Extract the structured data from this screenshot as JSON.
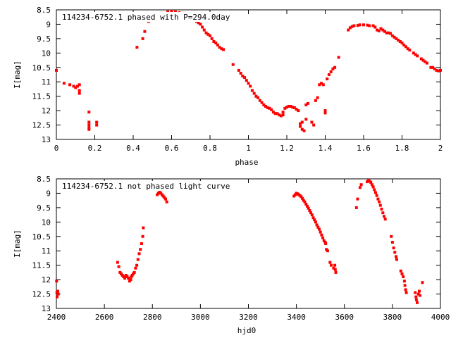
{
  "chart_data": [
    {
      "type": "scatter",
      "title": "114234-6752.1 phased with P=294.0day",
      "xlabel": "phase",
      "ylabel": "I[mag]",
      "xlim": [
        0,
        2
      ],
      "ylim": [
        8.5,
        13
      ],
      "y_inverted": true,
      "grid": false,
      "legend": "none",
      "marker_color": "#ff0000",
      "xticks": [
        "0",
        "0.2",
        "0.4",
        "0.6",
        "0.8",
        "1",
        "1.2",
        "1.4",
        "1.6",
        "1.8",
        "2"
      ],
      "yticks": [
        "8.5",
        "9",
        "9.5",
        "10",
        "10.5",
        "11",
        "11.5",
        "12",
        "12.5",
        "13"
      ],
      "series": [
        {
          "points": [
            [
              0.0,
              10.6
            ],
            [
              0.04,
              11.05
            ],
            [
              0.07,
              11.1
            ],
            [
              0.09,
              11.15
            ],
            [
              0.1,
              11.2
            ],
            [
              0.11,
              11.15
            ],
            [
              0.12,
              11.1
            ],
            [
              0.12,
              11.3
            ],
            [
              0.12,
              11.4
            ],
            [
              0.17,
              12.05
            ],
            [
              0.17,
              12.4
            ],
            [
              0.17,
              12.5
            ],
            [
              0.17,
              12.6
            ],
            [
              0.17,
              12.65
            ],
            [
              0.21,
              12.4
            ],
            [
              0.21,
              12.5
            ],
            [
              0.42,
              9.8
            ],
            [
              0.45,
              9.5
            ],
            [
              0.46,
              9.25
            ],
            [
              0.48,
              8.9
            ],
            [
              0.5,
              8.8
            ],
            [
              0.52,
              8.72
            ],
            [
              0.54,
              8.67
            ],
            [
              0.55,
              8.62
            ],
            [
              0.58,
              8.57
            ],
            [
              0.6,
              8.55
            ],
            [
              0.62,
              8.57
            ],
            [
              0.64,
              8.6
            ],
            [
              0.66,
              8.62
            ],
            [
              0.68,
              8.65
            ],
            [
              0.7,
              8.72
            ],
            [
              0.71,
              8.75
            ],
            [
              0.72,
              8.8
            ],
            [
              0.73,
              8.9
            ],
            [
              0.74,
              8.95
            ],
            [
              0.75,
              9.0
            ],
            [
              0.76,
              9.1
            ],
            [
              0.77,
              9.2
            ],
            [
              0.78,
              9.3
            ],
            [
              0.79,
              9.35
            ],
            [
              0.8,
              9.4
            ],
            [
              0.81,
              9.5
            ],
            [
              0.82,
              9.6
            ],
            [
              0.83,
              9.65
            ],
            [
              0.84,
              9.72
            ],
            [
              0.85,
              9.8
            ],
            [
              0.86,
              9.85
            ],
            [
              0.87,
              9.88
            ],
            [
              0.92,
              10.4
            ],
            [
              0.95,
              10.6
            ],
            [
              0.96,
              10.7
            ],
            [
              0.97,
              10.8
            ],
            [
              0.98,
              10.85
            ],
            [
              0.99,
              10.95
            ],
            [
              1.0,
              11.05
            ],
            [
              1.01,
              11.15
            ],
            [
              1.02,
              11.3
            ],
            [
              1.03,
              11.4
            ],
            [
              1.04,
              11.5
            ],
            [
              1.05,
              11.55
            ],
            [
              1.06,
              11.65
            ],
            [
              1.07,
              11.72
            ],
            [
              1.08,
              11.8
            ],
            [
              1.09,
              11.85
            ],
            [
              1.1,
              11.9
            ],
            [
              1.11,
              11.92
            ],
            [
              1.12,
              11.97
            ],
            [
              1.13,
              12.05
            ],
            [
              1.14,
              12.1
            ],
            [
              1.15,
              12.1
            ],
            [
              1.16,
              12.15
            ],
            [
              1.17,
              12.18
            ],
            [
              1.18,
              12.15
            ],
            [
              1.18,
              12.05
            ],
            [
              1.19,
              11.92
            ],
            [
              1.2,
              11.88
            ],
            [
              1.21,
              11.85
            ],
            [
              1.22,
              11.85
            ],
            [
              1.23,
              11.88
            ],
            [
              1.24,
              11.9
            ],
            [
              1.25,
              11.95
            ],
            [
              1.26,
              12.0
            ],
            [
              1.27,
              12.45
            ],
            [
              1.27,
              12.55
            ],
            [
              1.28,
              12.65
            ],
            [
              1.29,
              12.7
            ],
            [
              1.28,
              12.4
            ],
            [
              1.3,
              12.3
            ],
            [
              1.3,
              11.8
            ],
            [
              1.31,
              11.75
            ],
            [
              1.33,
              12.4
            ],
            [
              1.34,
              12.5
            ],
            [
              1.35,
              11.65
            ],
            [
              1.36,
              11.55
            ],
            [
              1.37,
              11.1
            ],
            [
              1.38,
              11.05
            ],
            [
              1.39,
              11.1
            ],
            [
              1.4,
              12.0
            ],
            [
              1.4,
              12.08
            ],
            [
              1.41,
              10.9
            ],
            [
              1.42,
              10.75
            ],
            [
              1.43,
              10.65
            ],
            [
              1.44,
              10.55
            ],
            [
              1.45,
              10.5
            ],
            [
              1.47,
              10.15
            ],
            [
              1.52,
              9.2
            ],
            [
              1.53,
              9.12
            ],
            [
              1.54,
              9.08
            ],
            [
              1.55,
              9.05
            ],
            [
              1.57,
              9.04
            ],
            [
              1.58,
              9.02
            ],
            [
              1.6,
              9.02
            ],
            [
              1.62,
              9.03
            ],
            [
              1.63,
              9.05
            ],
            [
              1.65,
              9.05
            ],
            [
              1.66,
              9.1
            ],
            [
              1.67,
              9.2
            ],
            [
              1.68,
              9.23
            ],
            [
              1.69,
              9.15
            ],
            [
              1.7,
              9.2
            ],
            [
              1.71,
              9.25
            ],
            [
              1.72,
              9.3
            ],
            [
              1.73,
              9.3
            ],
            [
              1.74,
              9.32
            ],
            [
              1.75,
              9.4
            ],
            [
              1.76,
              9.45
            ],
            [
              1.77,
              9.5
            ],
            [
              1.78,
              9.55
            ],
            [
              1.79,
              9.6
            ],
            [
              1.8,
              9.65
            ],
            [
              1.81,
              9.72
            ],
            [
              1.82,
              9.78
            ],
            [
              1.83,
              9.85
            ],
            [
              1.84,
              9.9
            ],
            [
              1.86,
              10.0
            ],
            [
              1.87,
              10.05
            ],
            [
              1.88,
              10.1
            ],
            [
              1.9,
              10.2
            ],
            [
              1.91,
              10.25
            ],
            [
              1.92,
              10.3
            ],
            [
              1.93,
              10.35
            ],
            [
              1.95,
              10.5
            ],
            [
              1.96,
              10.5
            ],
            [
              1.97,
              10.55
            ],
            [
              1.98,
              10.6
            ],
            [
              1.99,
              10.62
            ],
            [
              2.0,
              10.6
            ]
          ]
        }
      ]
    },
    {
      "type": "scatter",
      "title": "114234-6752.1 not phased light curve",
      "xlabel": "hjd0",
      "ylabel": "I[mag]",
      "xlim": [
        2400,
        4000
      ],
      "ylim": [
        8.5,
        13
      ],
      "y_inverted": true,
      "grid": false,
      "legend": "none",
      "marker_color": "#ff0000",
      "xticks": [
        "2400",
        "2600",
        "2800",
        "3000",
        "3200",
        "3400",
        "3600",
        "3800",
        "4000"
      ],
      "yticks": [
        "8.5",
        "9",
        "9.5",
        "10",
        "10.5",
        "11",
        "11.5",
        "12",
        "12.5",
        "13"
      ],
      "series": [
        {
          "points": [
            [
              2401,
              12.05
            ],
            [
              2402,
              12.45
            ],
            [
              2403,
              12.6
            ],
            [
              2406,
              12.4
            ],
            [
              2408,
              12.5
            ],
            [
              2655,
              11.4
            ],
            [
              2660,
              11.55
            ],
            [
              2665,
              11.75
            ],
            [
              2670,
              11.8
            ],
            [
              2675,
              11.85
            ],
            [
              2680,
              11.9
            ],
            [
              2685,
              11.95
            ],
            [
              2690,
              11.85
            ],
            [
              2695,
              11.9
            ],
            [
              2700,
              11.95
            ],
            [
              2705,
              12.05
            ],
            [
              2710,
              12.0
            ],
            [
              2712,
              11.9
            ],
            [
              2716,
              11.85
            ],
            [
              2720,
              11.8
            ],
            [
              2725,
              11.75
            ],
            [
              2730,
              11.6
            ],
            [
              2735,
              11.5
            ],
            [
              2740,
              11.3
            ],
            [
              2745,
              11.1
            ],
            [
              2750,
              10.95
            ],
            [
              2755,
              10.75
            ],
            [
              2760,
              10.5
            ],
            [
              2762,
              10.2
            ],
            [
              2820,
              9.05
            ],
            [
              2825,
              9.0
            ],
            [
              2830,
              8.95
            ],
            [
              2835,
              9.0
            ],
            [
              2840,
              9.05
            ],
            [
              2845,
              9.1
            ],
            [
              2850,
              9.15
            ],
            [
              2855,
              9.2
            ],
            [
              2860,
              9.3
            ],
            [
              3390,
              9.1
            ],
            [
              3395,
              9.05
            ],
            [
              3400,
              9.0
            ],
            [
              3405,
              9.02
            ],
            [
              3410,
              9.05
            ],
            [
              3415,
              9.08
            ],
            [
              3420,
              9.12
            ],
            [
              3425,
              9.18
            ],
            [
              3430,
              9.25
            ],
            [
              3435,
              9.3
            ],
            [
              3440,
              9.38
            ],
            [
              3445,
              9.45
            ],
            [
              3450,
              9.52
            ],
            [
              3455,
              9.6
            ],
            [
              3460,
              9.68
            ],
            [
              3465,
              9.75
            ],
            [
              3470,
              9.85
            ],
            [
              3475,
              9.92
            ],
            [
              3480,
              10.0
            ],
            [
              3485,
              10.1
            ],
            [
              3490,
              10.18
            ],
            [
              3495,
              10.25
            ],
            [
              3500,
              10.35
            ],
            [
              3505,
              10.45
            ],
            [
              3510,
              10.55
            ],
            [
              3515,
              10.65
            ],
            [
              3520,
              10.7
            ],
            [
              3522,
              10.75
            ],
            [
              3525,
              10.95
            ],
            [
              3530,
              11.0
            ],
            [
              3540,
              11.4
            ],
            [
              3545,
              11.5
            ],
            [
              3555,
              11.6
            ],
            [
              3560,
              11.5
            ],
            [
              3562,
              11.65
            ],
            [
              3564,
              11.75
            ],
            [
              3650,
              9.5
            ],
            [
              3655,
              9.2
            ],
            [
              3665,
              8.8
            ],
            [
              3670,
              8.7
            ],
            [
              3695,
              8.6
            ],
            [
              3700,
              8.55
            ],
            [
              3705,
              8.58
            ],
            [
              3710,
              8.62
            ],
            [
              3715,
              8.7
            ],
            [
              3720,
              8.78
            ],
            [
              3725,
              8.88
            ],
            [
              3730,
              8.98
            ],
            [
              3735,
              9.08
            ],
            [
              3740,
              9.2
            ],
            [
              3745,
              9.3
            ],
            [
              3750,
              9.42
            ],
            [
              3755,
              9.55
            ],
            [
              3760,
              9.68
            ],
            [
              3765,
              9.8
            ],
            [
              3770,
              9.9
            ],
            [
              3795,
              10.5
            ],
            [
              3800,
              10.7
            ],
            [
              3805,
              10.9
            ],
            [
              3810,
              11.05
            ],
            [
              3815,
              11.2
            ],
            [
              3818,
              11.3
            ],
            [
              3835,
              11.7
            ],
            [
              3840,
              11.8
            ],
            [
              3845,
              11.9
            ],
            [
              3850,
              12.05
            ],
            [
              3852,
              12.2
            ],
            [
              3855,
              12.35
            ],
            [
              3858,
              12.45
            ],
            [
              3895,
              12.45
            ],
            [
              3898,
              12.6
            ],
            [
              3900,
              12.7
            ],
            [
              3903,
              12.8
            ],
            [
              3908,
              12.5
            ],
            [
              3912,
              12.4
            ],
            [
              3915,
              12.55
            ],
            [
              3925,
              12.1
            ]
          ]
        }
      ]
    }
  ]
}
